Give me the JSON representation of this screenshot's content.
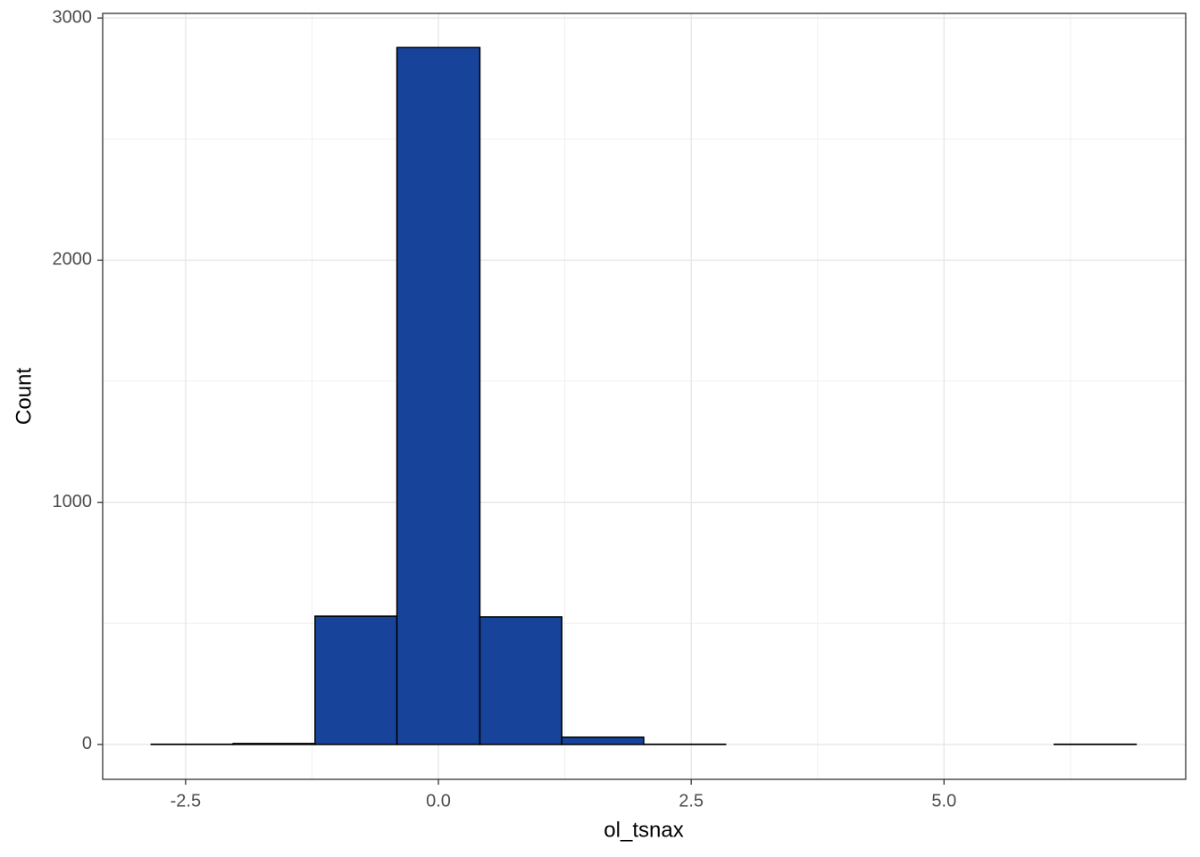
{
  "chart_data": {
    "type": "histogram",
    "x_label": "ol_tsnax",
    "y_label": "Count",
    "bins": [
      -2.84,
      -2.03,
      -1.22,
      -0.41,
      0.41,
      1.22,
      2.03,
      2.84,
      3.65,
      4.47,
      5.28,
      6.09,
      6.9
    ],
    "values": [
      1,
      4,
      530,
      2878,
      527,
      30,
      1,
      0,
      0,
      0,
      0,
      1
    ],
    "color": "#17449a",
    "edge_color": "#000000",
    "xlim": [
      -3.32,
      7.39
    ],
    "ylim": [
      -144,
      3019
    ],
    "xticks": [
      -2.5,
      {
        "value": 0,
        "label": "0.0"
      },
      2.5,
      {
        "value": 5,
        "label": "5.0"
      }
    ],
    "yticks": [
      0,
      1000,
      2000,
      3000
    ],
    "minor_xticks": [
      -1.25,
      1.25,
      3.75,
      6.25
    ],
    "minor_yticks": [
      500,
      1500,
      2500
    ],
    "grid": true
  }
}
